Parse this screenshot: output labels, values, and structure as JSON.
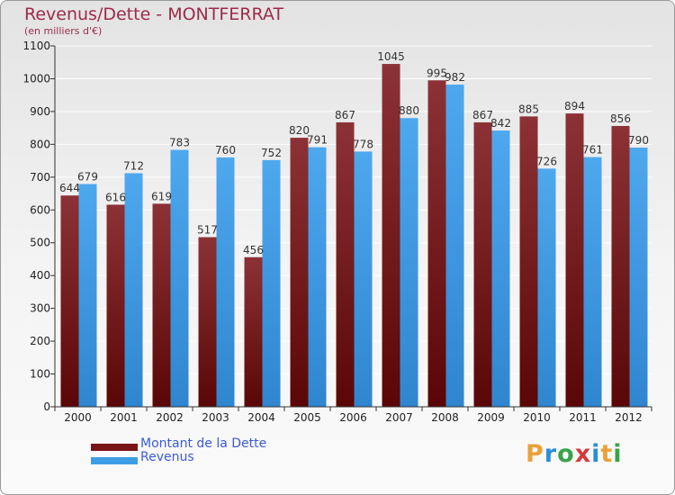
{
  "title": "Revenus/Dette - MONTFERRAT",
  "subtitle": "(en milliers d'€)",
  "legend": [
    {
      "label": "Montant de la Dette",
      "color": "#7b1416"
    },
    {
      "label": "Revenus",
      "color": "#3d9ee6"
    }
  ],
  "logo": {
    "text": "Proxiti",
    "colors": [
      "#e8a23a",
      "#2b8fd6",
      "#3aa34a",
      "#d43a3a",
      "#2b8fd6",
      "#e8a23a",
      "#3aa34a"
    ]
  },
  "chart_data": {
    "type": "bar",
    "categories": [
      "2000",
      "2001",
      "2002",
      "2003",
      "2004",
      "2005",
      "2006",
      "2007",
      "2008",
      "2009",
      "2010",
      "2011",
      "2012"
    ],
    "series": [
      {
        "name": "Montant de la Dette",
        "color": "#7b1416",
        "values": [
          644,
          616,
          619,
          517,
          456,
          820,
          867,
          1045,
          995,
          867,
          885,
          894,
          856
        ]
      },
      {
        "name": "Revenus",
        "color": "#3d9ee6",
        "values": [
          679,
          712,
          783,
          760,
          752,
          791,
          778,
          880,
          982,
          842,
          726,
          761,
          790
        ]
      }
    ],
    "ylim": [
      0,
      1100
    ],
    "yticks": [
      0,
      100,
      200,
      300,
      400,
      500,
      600,
      700,
      800,
      900,
      1000,
      1100
    ],
    "grid": true,
    "legend_position": "bottom-left"
  }
}
